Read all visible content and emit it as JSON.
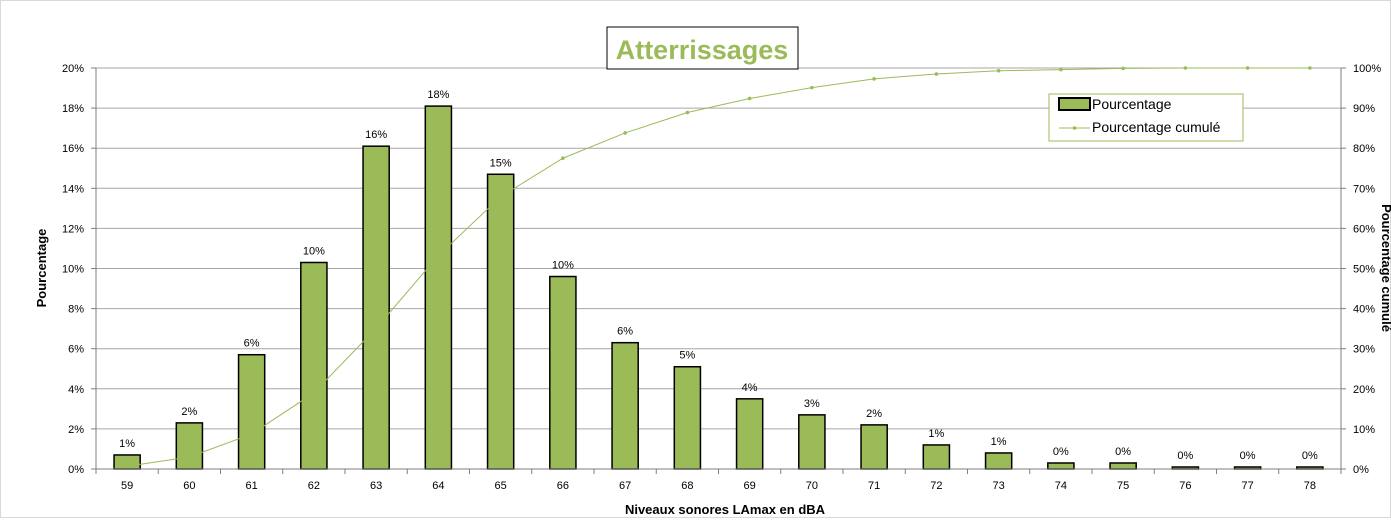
{
  "chart_data": {
    "type": "bar+line",
    "title": "Atterrissages",
    "xlabel": "Niveaux sonores LAmax en dBA",
    "ylabel": "Pourcentage",
    "y2label": "Pourcentage cumulé",
    "categories": [
      "59",
      "60",
      "61",
      "62",
      "63",
      "64",
      "65",
      "66",
      "67",
      "68",
      "69",
      "70",
      "71",
      "72",
      "73",
      "74",
      "75",
      "76",
      "77",
      "78"
    ],
    "series": [
      {
        "name": "Pourcentage",
        "type": "bar",
        "axis": "left",
        "values": [
          0.7,
          2.3,
          5.7,
          10.3,
          16.1,
          18.1,
          14.7,
          9.6,
          6.3,
          5.1,
          3.5,
          2.7,
          2.2,
          1.2,
          0.8,
          0.3,
          0.3,
          0.1,
          0.1,
          0.1
        ],
        "labels": [
          "1%",
          "2%",
          "6%",
          "10%",
          "16%",
          "18%",
          "15%",
          "10%",
          "6%",
          "5%",
          "4%",
          "3%",
          "2%",
          "1%",
          "1%",
          "0%",
          "0%",
          "0%",
          "0%",
          "0%"
        ]
      },
      {
        "name": "Pourcentage cumulé",
        "type": "line",
        "axis": "right",
        "values": [
          0.7,
          3.0,
          8.7,
          19.0,
          35.1,
          53.2,
          67.9,
          77.5,
          83.8,
          88.9,
          92.4,
          95.1,
          97.3,
          98.5,
          99.3,
          99.6,
          99.9,
          100.0,
          100.0,
          100.0
        ]
      }
    ],
    "ylim": [
      0,
      20
    ],
    "y2lim": [
      0,
      100
    ],
    "yticks": [
      "0%",
      "2%",
      "4%",
      "6%",
      "8%",
      "10%",
      "12%",
      "14%",
      "16%",
      "18%",
      "20%"
    ],
    "y2ticks": [
      "0%",
      "10%",
      "20%",
      "30%",
      "40%",
      "50%",
      "60%",
      "70%",
      "80%",
      "90%",
      "100%"
    ],
    "grid": true,
    "legend_position": "top-right",
    "colors": {
      "bar": "#9bbb59",
      "bar_border": "#000000",
      "line": "#9bbb59",
      "title": "#9bbb59",
      "grid": "#a6a6a6"
    }
  }
}
